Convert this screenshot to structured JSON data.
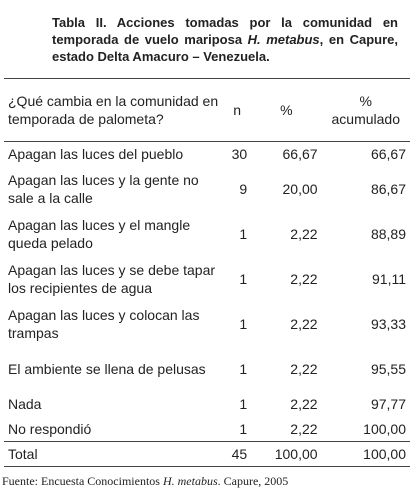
{
  "title": [
    "Tabla II. Acciones tomadas por la comunidad en temporada de vuelo mariposa",
    "H. metabus",
    ", en Capure, estado Delta Amacuro – Venezuela."
  ],
  "table": {
    "header": [
      "¿Qué cambia en la comunidad en temporada de palometa?",
      "n",
      "%",
      "% acumulado"
    ],
    "rows": [
      [
        "Apagan las luces del pueblo",
        "30",
        "66,67",
        "66,67"
      ],
      [
        "Apagan las luces y la gente no sale a la calle",
        "9",
        "20,00",
        "86,67"
      ],
      [
        "Apagan las luces y el mangle queda pelado",
        "1",
        "2,22",
        "88,89"
      ],
      [
        "Apagan las luces y se debe tapar los recipientes de agua",
        "1",
        "2,22",
        "91,11"
      ],
      [
        "Apagan las luces y colocan las trampas",
        "1",
        "2,22",
        "93,33"
      ],
      [
        "El ambiente se llena de pelusas",
        "1",
        "2,22",
        "95,55"
      ],
      [
        "Nada",
        "1",
        "2,22",
        "97,77"
      ],
      [
        "No respondió",
        "1",
        "2,22",
        "100,00"
      ]
    ],
    "total": [
      "Total",
      "45",
      "100,00",
      "100,00"
    ]
  },
  "source": [
    "Fuente: Encuesta Conocimientos",
    "H. metabus",
    ". Capure, 2005"
  ]
}
